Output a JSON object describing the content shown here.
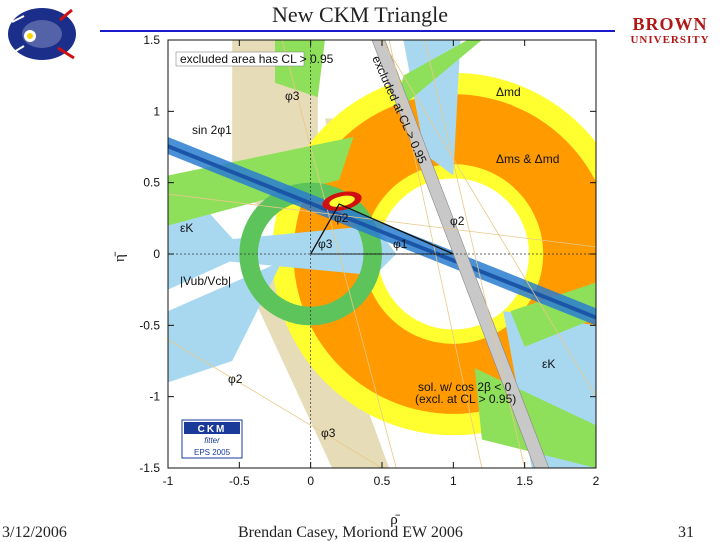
{
  "slide": {
    "title": "New CKM Triangle",
    "footer_date": "3/12/2006",
    "footer_author": "Brendan Casey, Moriond EW 2006",
    "page_number": "31",
    "right_logo_line1": "BROWN",
    "right_logo_line2": "UNIVERSITY"
  },
  "colors": {
    "title_rule": "#1a1acc",
    "light_blue": "#a8d8f0",
    "green": "#8ee05a",
    "dark_green": "#5cc45a",
    "orange": "#ff9a00",
    "yellow": "#ffff30",
    "tan": "#e6dcb8",
    "blue_band": "#2a7ccf",
    "gray_band": "#c8c8c8",
    "red": "#d01010"
  },
  "chart_data": {
    "type": "constraint-plot",
    "title": "New CKM Triangle",
    "xlabel": "ρ̄",
    "ylabel": "η̄",
    "xlim": [
      -1,
      2
    ],
    "ylim": [
      -1.5,
      1.5
    ],
    "x_ticks": [
      -1,
      -0.5,
      0,
      0.5,
      1,
      1.5,
      2
    ],
    "x_tick_labels": [
      "-1",
      "-0.5",
      "0",
      "0.5",
      "1",
      "1.5",
      "2"
    ],
    "y_ticks": [
      -1.5,
      -1,
      -0.5,
      0,
      0.5,
      1,
      1.5
    ],
    "y_tick_labels": [
      "-1.5",
      "-1",
      "-0.5",
      "0",
      "0.5",
      "1",
      "1.5"
    ],
    "apex": {
      "rho": 0.2,
      "eta": 0.35
    },
    "note_top": "excluded area has CL > 0.95",
    "note_bottom_line1": "sol. w/ cos 2β < 0",
    "note_bottom_line2": "(excl. at CL > 0.95)",
    "diagonal_band_label": "excluded at CL > 0.95",
    "labels": {
      "phi3_top": "φ3",
      "dmd": "Δmd",
      "sin2phi1": "sin 2φ1",
      "dms_dmd": "Δms & Δmd",
      "epsK_left": "εK",
      "phi2_right": "φ2",
      "phi2_apex": "φ2",
      "phi3_apex": "φ3",
      "phi1_base": "φ1",
      "vub_vcb": "|Vub/Vcb|",
      "phi2_bottom": "φ2",
      "phi3_bottom": "φ3",
      "epsK_right": "εK"
    },
    "legend_box": {
      "line1": "CKM",
      "line2": "fitter",
      "line3": "EPS 2005"
    }
  }
}
